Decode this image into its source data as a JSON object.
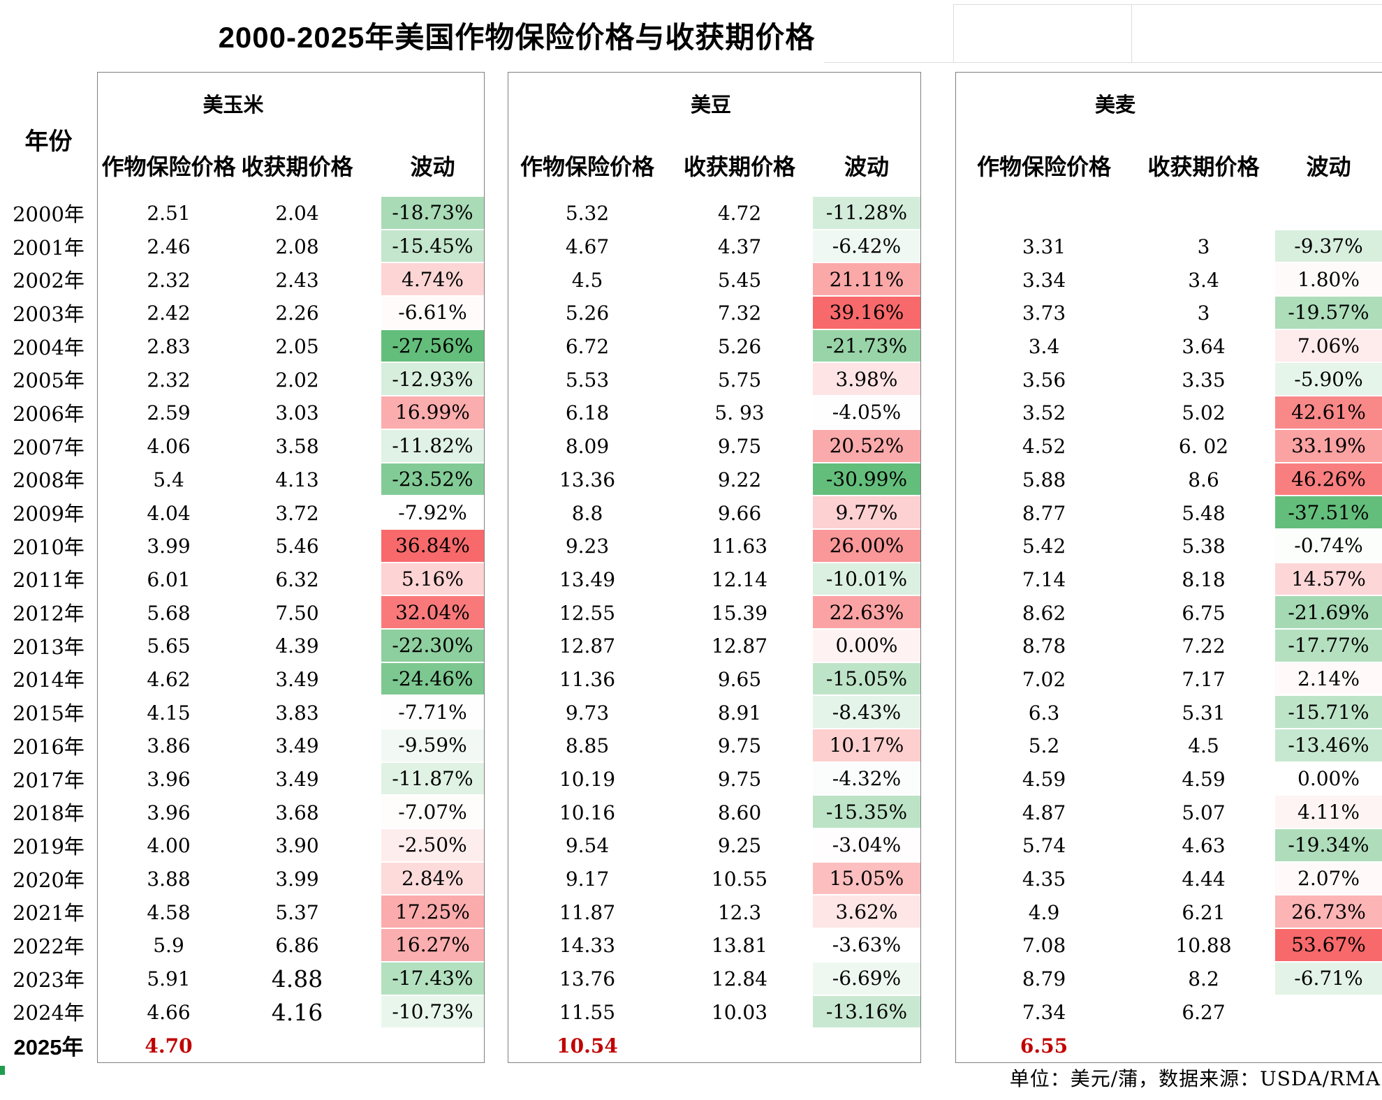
{
  "year_header": "年份",
  "footer": "单位：美元/蒲，数据来源：USDA/RMA",
  "forecast_row": 25,
  "accent_colors": {
    "fluct_positive_max": "#f8696b",
    "fluct_negative_max": "#63be7b",
    "fluct_midpoint": "#ffffff",
    "forecast_value": "#c00000",
    "table_border": "#7f7f7f"
  },
  "large_value_cells": [
    {
      "table": 0,
      "row": 23,
      "col": 1
    },
    {
      "table": 0,
      "row": 24,
      "col": 1
    }
  ],
  "chart_data": {
    "type": "table",
    "title": "2000-2025年美国作物保险价格与收获期价格",
    "unit_note": "单位：美元/蒲，数据来源：USDA/RMA",
    "categories": [
      "2000年",
      "2001年",
      "2002年",
      "2003年",
      "2004年",
      "2005年",
      "2006年",
      "2007年",
      "2008年",
      "2009年",
      "2010年",
      "2011年",
      "2012年",
      "2013年",
      "2014年",
      "2015年",
      "2016年",
      "2017年",
      "2018年",
      "2019年",
      "2020年",
      "2021年",
      "2022年",
      "2023年",
      "2024年",
      "2025年"
    ],
    "groups": [
      {
        "name": "美玉米",
        "columns": [
          "作物保险价格",
          "收获期价格",
          "波动"
        ],
        "rows": [
          [
            "2.51",
            "2.04",
            "-18.73%"
          ],
          [
            "2.46",
            "2.08",
            "-15.45%"
          ],
          [
            "2.32",
            "2.43",
            "4.74%"
          ],
          [
            "2.42",
            "2.26",
            "-6.61%"
          ],
          [
            "2.83",
            "2.05",
            "-27.56%"
          ],
          [
            "2.32",
            "2.02",
            "-12.93%"
          ],
          [
            "2.59",
            "3.03",
            "16.99%"
          ],
          [
            "4.06",
            "3.58",
            "-11.82%"
          ],
          [
            "5.4",
            "4.13",
            "-23.52%"
          ],
          [
            "4.04",
            "3.72",
            "-7.92%"
          ],
          [
            "3.99",
            "5.46",
            "36.84%"
          ],
          [
            "6.01",
            "6.32",
            "5.16%"
          ],
          [
            "5.68",
            "7.50",
            "32.04%"
          ],
          [
            "5.65",
            "4.39",
            "-22.30%"
          ],
          [
            "4.62",
            "3.49",
            "-24.46%"
          ],
          [
            "4.15",
            "3.83",
            "-7.71%"
          ],
          [
            "3.86",
            "3.49",
            "-9.59%"
          ],
          [
            "3.96",
            "3.49",
            "-11.87%"
          ],
          [
            "3.96",
            "3.68",
            "-7.07%"
          ],
          [
            "4.00",
            "3.90",
            "-2.50%"
          ],
          [
            "3.88",
            "3.99",
            "2.84%"
          ],
          [
            "4.58",
            "5.37",
            "17.25%"
          ],
          [
            "5.9",
            "6.86",
            "16.27%"
          ],
          [
            "5.91",
            "4.88",
            "-17.43%"
          ],
          [
            "4.66",
            "4.16",
            "-10.73%"
          ],
          [
            "4.70",
            "",
            ""
          ]
        ]
      },
      {
        "name": "美豆",
        "columns": [
          "作物保险价格",
          "收获期价格",
          "波动"
        ],
        "rows": [
          [
            "5.32",
            "4.72",
            "-11.28%"
          ],
          [
            "4.67",
            "4.37",
            "-6.42%"
          ],
          [
            "4.5",
            "5.45",
            "21.11%"
          ],
          [
            "5.26",
            "7.32",
            "39.16%"
          ],
          [
            "6.72",
            "5.26",
            "-21.73%"
          ],
          [
            "5.53",
            "5.75",
            "3.98%"
          ],
          [
            "6.18",
            "5. 93",
            "-4.05%"
          ],
          [
            "8.09",
            "9.75",
            "20.52%"
          ],
          [
            "13.36",
            "9.22",
            "-30.99%"
          ],
          [
            "8.8",
            "9.66",
            "9.77%"
          ],
          [
            "9.23",
            "11.63",
            "26.00%"
          ],
          [
            "13.49",
            "12.14",
            "-10.01%"
          ],
          [
            "12.55",
            "15.39",
            "22.63%"
          ],
          [
            "12.87",
            "12.87",
            "0.00%"
          ],
          [
            "11.36",
            "9.65",
            "-15.05%"
          ],
          [
            "9.73",
            "8.91",
            "-8.43%"
          ],
          [
            "8.85",
            "9.75",
            "10.17%"
          ],
          [
            "10.19",
            "9.75",
            "-4.32%"
          ],
          [
            "10.16",
            "8.60",
            "-15.35%"
          ],
          [
            "9.54",
            "9.25",
            "-3.04%"
          ],
          [
            "9.17",
            "10.55",
            "15.05%"
          ],
          [
            "11.87",
            "12.3",
            "3.62%"
          ],
          [
            "14.33",
            "13.81",
            "-3.63%"
          ],
          [
            "13.76",
            "12.84",
            "-6.69%"
          ],
          [
            "11.55",
            "10.03",
            "-13.16%"
          ],
          [
            "10.54",
            "",
            ""
          ]
        ]
      },
      {
        "name": "美麦",
        "columns": [
          "作物保险价格",
          "收获期价格",
          "波动"
        ],
        "rows": [
          [
            "",
            "",
            ""
          ],
          [
            "3.31",
            "3",
            "-9.37%"
          ],
          [
            "3.34",
            "3.4",
            "1.80%"
          ],
          [
            "3.73",
            "3",
            "-19.57%"
          ],
          [
            "3.4",
            "3.64",
            "7.06%"
          ],
          [
            "3.56",
            "3.35",
            "-5.90%"
          ],
          [
            "3.52",
            "5.02",
            "42.61%"
          ],
          [
            "4.52",
            "6. 02",
            "33.19%"
          ],
          [
            "5.88",
            "8.6",
            "46.26%"
          ],
          [
            "8.77",
            "5.48",
            "-37.51%"
          ],
          [
            "5.42",
            "5.38",
            "-0.74%"
          ],
          [
            "7.14",
            "8.18",
            "14.57%"
          ],
          [
            "8.62",
            "6.75",
            "-21.69%"
          ],
          [
            "8.78",
            "7.22",
            "-17.77%"
          ],
          [
            "7.02",
            "7.17",
            "2.14%"
          ],
          [
            "6.3",
            "5.31",
            "-15.71%"
          ],
          [
            "5.2",
            "4.5",
            "-13.46%"
          ],
          [
            "4.59",
            "4.59",
            "0.00%"
          ],
          [
            "4.87",
            "5.07",
            "4.11%"
          ],
          [
            "5.74",
            "4.63",
            "-19.34%"
          ],
          [
            "4.35",
            "4.44",
            "2.07%"
          ],
          [
            "4.9",
            "6.21",
            "26.73%"
          ],
          [
            "7.08",
            "10.88",
            "53.67%"
          ],
          [
            "8.79",
            "8.2",
            "-6.71%"
          ],
          [
            "7.34",
            "6.27",
            ""
          ],
          [
            "6.55",
            "",
            ""
          ]
        ]
      }
    ]
  }
}
